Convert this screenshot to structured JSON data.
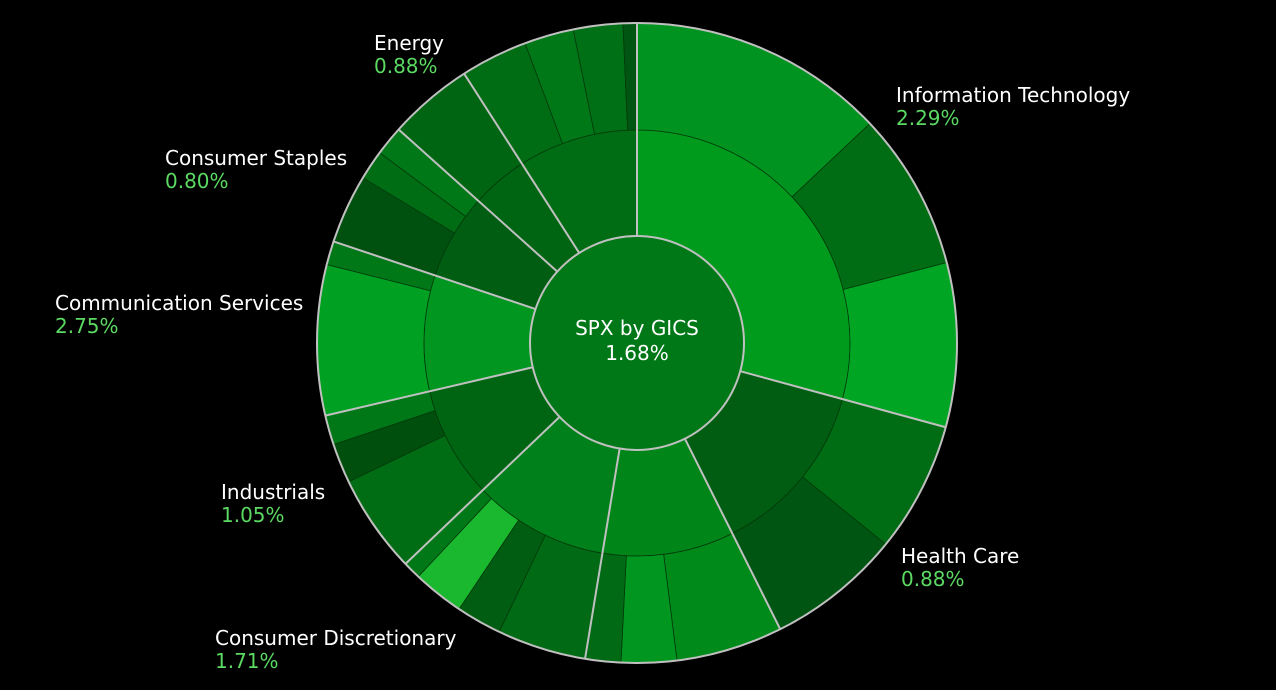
{
  "chart_data": {
    "type": "sunburst",
    "title": "SPX by GICS",
    "total_change": "1.68%",
    "sectors": [
      {
        "name": "Information Technology",
        "change": "2.29%",
        "weight": 29.3,
        "color": "#009a1d",
        "children": [
          {
            "weight": 13.0,
            "color": "#00931f"
          },
          {
            "weight": 8.0,
            "color": "#006d14"
          },
          {
            "weight": 8.3,
            "color": "#00a524"
          }
        ]
      },
      {
        "name": "Health Care",
        "change": "0.88%",
        "weight": 13.4,
        "color": "#005d12",
        "children": [
          {
            "weight": 6.6,
            "color": "#006d14"
          },
          {
            "weight": 6.8,
            "color": "#005512"
          }
        ]
      },
      {
        "name": "Consumer Discretionary",
        "change": "1.71%",
        "weight": 10.0,
        "color": "#008518",
        "children": [
          {
            "weight": 5.4,
            "color": "#008a1a"
          },
          {
            "weight": 2.8,
            "color": "#00961f"
          },
          {
            "weight": 1.8,
            "color": "#006a14"
          }
        ]
      },
      {
        "name": "Consumer Discretionary",
        "change": "",
        "weight": 10.3,
        "color": "#00801a",
        "children": [
          {
            "weight": 4.5,
            "color": "#006a14"
          },
          {
            "weight": 2.3,
            "color": "#005d12"
          },
          {
            "weight": 2.6,
            "color": "#1ab82e"
          },
          {
            "weight": 0.9,
            "color": "#007818"
          }
        ]
      },
      {
        "name": "Industrials",
        "change": "1.05%",
        "weight": 8.5,
        "color": "#006512",
        "children": [
          {
            "weight": 5.0,
            "color": "#006d14"
          },
          {
            "weight": 2.0,
            "color": "#004f0d"
          },
          {
            "weight": 1.5,
            "color": "#007818"
          }
        ]
      },
      {
        "name": "Communication Services",
        "change": "2.75%",
        "weight": 8.8,
        "color": "#00961f",
        "children": [
          {
            "weight": 7.6,
            "color": "#00a122"
          },
          {
            "weight": 1.2,
            "color": "#007818"
          }
        ]
      },
      {
        "name": "Consumer Staples",
        "change": "0.80%",
        "weight": 6.5,
        "color": "#005d12",
        "children": [
          {
            "weight": 3.5,
            "color": "#005010"
          },
          {
            "weight": 1.5,
            "color": "#006d14"
          },
          {
            "weight": 1.5,
            "color": "#007818"
          }
        ]
      },
      {
        "name": "Energy",
        "change": "0.88%",
        "weight": 4.3,
        "color": "#006512",
        "children": [
          {
            "weight": 4.3,
            "color": "#006512"
          }
        ]
      },
      {
        "name": "",
        "change": "",
        "weight": 9.1,
        "color": "#006d14",
        "children": [
          {
            "weight": 3.4,
            "color": "#006d14"
          },
          {
            "weight": 2.5,
            "color": "#007818"
          },
          {
            "weight": 2.5,
            "color": "#007016"
          },
          {
            "weight": 0.7,
            "color": "#005512"
          }
        ]
      }
    ]
  },
  "labels": [
    {
      "key": "energy",
      "name": "Energy",
      "change": "0.88%"
    },
    {
      "key": "information-technology",
      "name": "Information Technology",
      "change": "2.29%"
    },
    {
      "key": "consumer-staples",
      "name": "Consumer Staples",
      "change": "0.80%"
    },
    {
      "key": "communication-services",
      "name": "Communication Services",
      "change": "2.75%"
    },
    {
      "key": "industrials",
      "name": "Industrials",
      "change": "1.05%"
    },
    {
      "key": "health-care",
      "name": "Health Care",
      "change": "0.88%"
    },
    {
      "key": "consumer-discretionary",
      "name": "Consumer Discretionary",
      "change": "1.71%"
    }
  ],
  "colors": {
    "background": "#000000",
    "label_text": "#ffffff",
    "change_text": "#5bd962",
    "border": "#c0c0c0"
  }
}
